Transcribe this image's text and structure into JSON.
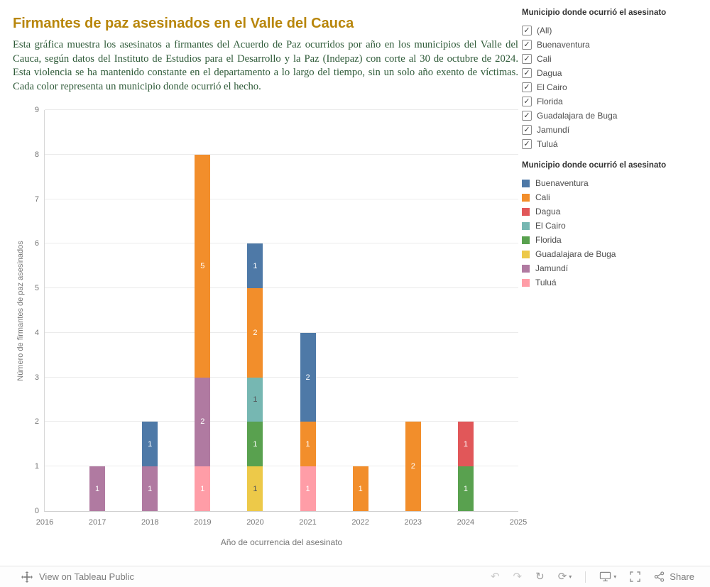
{
  "header": {
    "title": "Firmantes de paz asesinados en el Valle del Cauca",
    "description": "Esta gráfica muestra los asesinatos a firmantes del Acuerdo de Paz ocurridos por año en los municipios del Valle del Cauca, según datos del Instituto de Estudios para el Desarrollo y la Paz (Indepaz) con corte al 30 de octubre de 2024. Esta violencia se ha mantenido constante en el departamento a lo largo del tiempo, sin un solo año exento de víctimas. Cada color representa un municipio donde ocurrió el hecho."
  },
  "filter_panel": {
    "title": "Municipio donde ocurrió el asesinato",
    "items": [
      {
        "label": "(All)",
        "checked": true
      },
      {
        "label": "Buenaventura",
        "checked": true
      },
      {
        "label": "Cali",
        "checked": true
      },
      {
        "label": "Dagua",
        "checked": true
      },
      {
        "label": "El Cairo",
        "checked": true
      },
      {
        "label": "Florida",
        "checked": true
      },
      {
        "label": "Guadalajara de Buga",
        "checked": true
      },
      {
        "label": "Jamundí",
        "checked": true
      },
      {
        "label": "Tuluá",
        "checked": true
      }
    ]
  },
  "legend_panel": {
    "title": "Municipio donde ocurrió el asesinato",
    "items": [
      {
        "label": "Buenaventura",
        "color": "#4e79a7"
      },
      {
        "label": "Cali",
        "color": "#f28e2b"
      },
      {
        "label": "Dagua",
        "color": "#e15759"
      },
      {
        "label": "El Cairo",
        "color": "#76b7b2"
      },
      {
        "label": "Florida",
        "color": "#59a14f"
      },
      {
        "label": "Guadalajara de Buga",
        "color": "#edc949"
      },
      {
        "label": "Jamundí",
        "color": "#b07aa1"
      },
      {
        "label": "Tuluá",
        "color": "#ff9da7"
      }
    ]
  },
  "chart_data": {
    "type": "bar",
    "stacked": true,
    "title": "",
    "xlabel": "Año de ocurrencia del asesinato",
    "ylabel": "Número de firmantes de paz asesinados",
    "ylim": [
      0,
      9
    ],
    "grid": true,
    "legend_position": "right",
    "categories": [
      "2016",
      "2017",
      "2018",
      "2019",
      "2020",
      "2021",
      "2022",
      "2023",
      "2024",
      "2025"
    ],
    "series": [
      {
        "name": "Buenaventura",
        "color": "#4e79a7",
        "values": [
          0,
          0,
          1,
          0,
          1,
          2,
          0,
          0,
          0,
          0
        ]
      },
      {
        "name": "Cali",
        "color": "#f28e2b",
        "values": [
          0,
          0,
          0,
          5,
          2,
          1,
          1,
          2,
          0,
          0
        ]
      },
      {
        "name": "Dagua",
        "color": "#e15759",
        "values": [
          0,
          0,
          0,
          0,
          0,
          0,
          0,
          0,
          1,
          0
        ]
      },
      {
        "name": "El Cairo",
        "color": "#76b7b2",
        "values": [
          0,
          0,
          0,
          0,
          1,
          0,
          0,
          0,
          0,
          0
        ]
      },
      {
        "name": "Florida",
        "color": "#59a14f",
        "values": [
          0,
          0,
          0,
          0,
          1,
          0,
          0,
          0,
          1,
          0
        ]
      },
      {
        "name": "Guadalajara de Buga",
        "color": "#edc949",
        "values": [
          0,
          0,
          0,
          0,
          1,
          0,
          0,
          0,
          0,
          0
        ]
      },
      {
        "name": "Jamundí",
        "color": "#b07aa1",
        "values": [
          0,
          1,
          1,
          2,
          0,
          0,
          0,
          0,
          0,
          0
        ]
      },
      {
        "name": "Tuluá",
        "color": "#ff9da7",
        "values": [
          0,
          0,
          0,
          1,
          0,
          1,
          0,
          0,
          0,
          0
        ]
      }
    ],
    "stack_order": "bottom-to-top is reverse of series list (Tuluá at bottom, Buenaventura on top)",
    "segment_labels_shown": true,
    "label_dark_series": [
      "El Cairo",
      "Guadalajara de Buga"
    ],
    "label_light_color": "#ffffff",
    "label_dark_color": "#53565a"
  },
  "toolbar": {
    "view_label": "View on Tableau Public",
    "share_label": "Share",
    "icons": {
      "undo": "↶",
      "redo": "↷",
      "reset": "↻",
      "refresh": "⟳",
      "caret": "▾",
      "check": "✓"
    }
  }
}
